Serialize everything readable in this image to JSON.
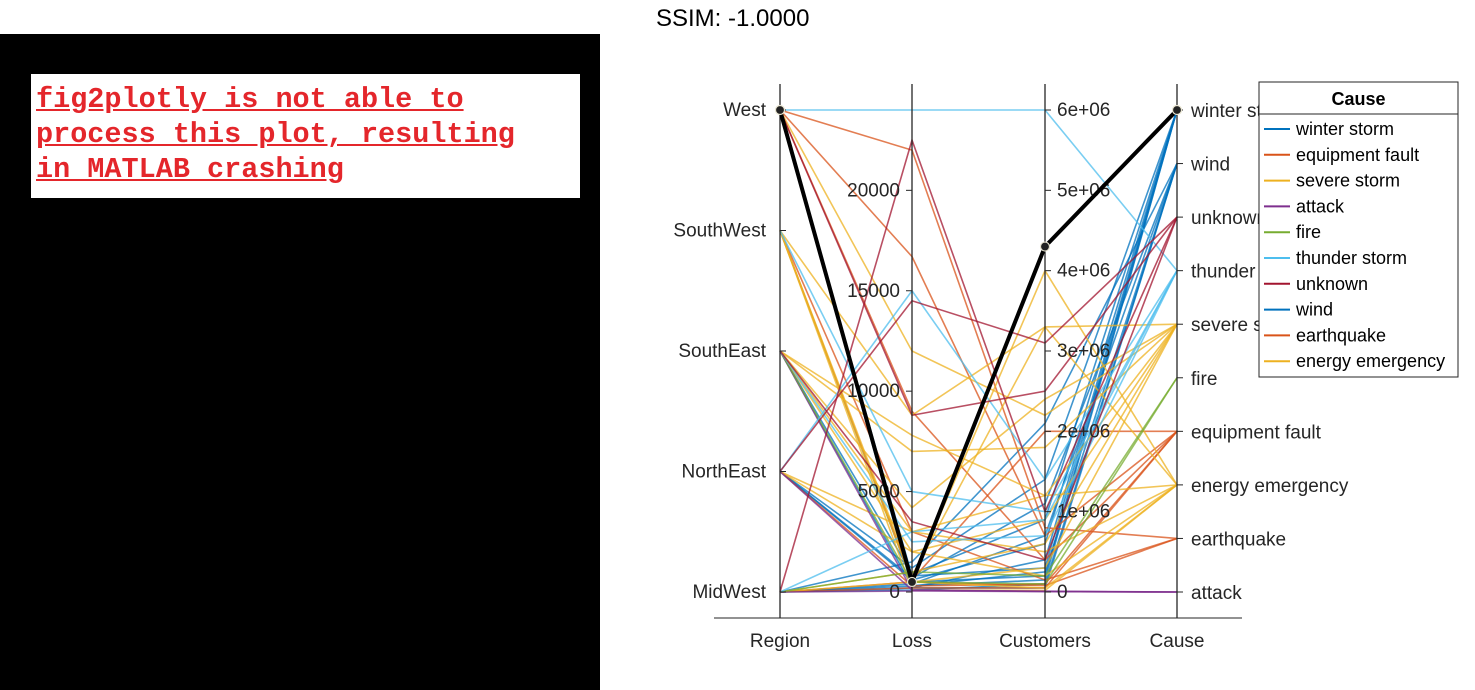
{
  "message": {
    "lines": [
      "fig2plotly is not able to",
      "process this plot, resulting",
      "in MATLAB crashing"
    ]
  },
  "ssim_label": "SSIM: -1.0000",
  "chart_data": {
    "type": "parallel-coordinates",
    "axes": [
      "Region",
      "Loss",
      "Customers",
      "Cause"
    ],
    "region_levels": [
      "MidWest",
      "NorthEast",
      "SouthEast",
      "SouthWest",
      "West"
    ],
    "cause_levels": [
      "attack",
      "earthquake",
      "energy emergency",
      "equipment fault",
      "fire",
      "severe storm",
      "thunder storm",
      "unknown",
      "wind",
      "winter storm"
    ],
    "loss_range": [
      0,
      24000
    ],
    "loss_ticks": [
      0,
      5000,
      10000,
      15000,
      20000
    ],
    "loss_tick_labels": [
      "0",
      "5000",
      "10000",
      "15000",
      "20000"
    ],
    "customers_range": [
      0,
      6000000
    ],
    "customers_ticks": [
      0,
      1000000,
      2000000,
      3000000,
      4000000,
      5000000,
      6000000
    ],
    "customers_tick_labels": [
      "0",
      "1e+06",
      "2e+06",
      "3e+06",
      "4e+06",
      "5e+06",
      "6e+06"
    ],
    "legend": {
      "title": "Cause",
      "position": "right",
      "entries": [
        {
          "label": "winter storm",
          "color": "#0072bd"
        },
        {
          "label": "equipment fault",
          "color": "#d95319"
        },
        {
          "label": "severe storm",
          "color": "#edb120"
        },
        {
          "label": "attack",
          "color": "#7e2f8e"
        },
        {
          "label": "fire",
          "color": "#77ac30"
        },
        {
          "label": "thunder storm",
          "color": "#4dbeee"
        },
        {
          "label": "unknown",
          "color": "#a2142f"
        },
        {
          "label": "wind",
          "color": "#0072bd"
        },
        {
          "label": "earthquake",
          "color": "#d95319"
        },
        {
          "label": "energy emergency",
          "color": "#edb120"
        }
      ]
    },
    "highlight": {
      "region": "West",
      "loss": 500,
      "customers": 4300000,
      "cause": "winter storm",
      "color": "#000000"
    },
    "series": [
      {
        "region": "West",
        "loss": 800,
        "customers": 300000,
        "cause": "winter storm"
      },
      {
        "region": "MidWest",
        "loss": 300,
        "customers": 150000,
        "cause": "winter storm"
      },
      {
        "region": "NorthEast",
        "loss": 600,
        "customers": 600000,
        "cause": "winter storm"
      },
      {
        "region": "SouthEast",
        "loss": 900,
        "customers": 900000,
        "cause": "winter storm"
      },
      {
        "region": "MidWest",
        "loss": 200,
        "customers": 400000,
        "cause": "winter storm"
      },
      {
        "region": "NorthEast",
        "loss": 1200,
        "customers": 1400000,
        "cause": "winter storm"
      },
      {
        "region": "SouthWest",
        "loss": 500,
        "customers": 200000,
        "cause": "winter storm"
      },
      {
        "region": "MidWest",
        "loss": 100,
        "customers": 100000,
        "cause": "wind"
      },
      {
        "region": "MidWest",
        "loss": 400,
        "customers": 700000,
        "cause": "wind"
      },
      {
        "region": "NorthEast",
        "loss": 700,
        "customers": 1100000,
        "cause": "wind"
      },
      {
        "region": "SouthEast",
        "loss": 300,
        "customers": 250000,
        "cause": "wind"
      },
      {
        "region": "West",
        "loss": 200,
        "customers": 50000,
        "cause": "wind"
      },
      {
        "region": "MidWest",
        "loss": 1500,
        "customers": 2100000,
        "cause": "wind"
      },
      {
        "region": "West",
        "loss": 16700,
        "customers": 700000,
        "cause": "equipment fault"
      },
      {
        "region": "West",
        "loss": 9000,
        "customers": 400000,
        "cause": "equipment fault"
      },
      {
        "region": "SouthWest",
        "loss": 600,
        "customers": 2000000,
        "cause": "equipment fault"
      },
      {
        "region": "NorthEast",
        "loss": 300,
        "customers": 100000,
        "cause": "equipment fault"
      },
      {
        "region": "MidWest",
        "loss": 200,
        "customers": 50000,
        "cause": "equipment fault"
      },
      {
        "region": "West",
        "loss": 22000,
        "customers": 800000,
        "cause": "earthquake"
      },
      {
        "region": "SouthWest",
        "loss": 3000,
        "customers": 150000,
        "cause": "earthquake"
      },
      {
        "region": "MidWest",
        "loss": 500,
        "customers": 80000,
        "cause": "earthquake"
      },
      {
        "region": "West",
        "loss": 12000,
        "customers": 2200000,
        "cause": "severe storm"
      },
      {
        "region": "SouthWest",
        "loss": 8800,
        "customers": 3300000,
        "cause": "severe storm"
      },
      {
        "region": "SouthEast",
        "loss": 7000,
        "customers": 1800000,
        "cause": "severe storm"
      },
      {
        "region": "SouthEast",
        "loss": 2000,
        "customers": 900000,
        "cause": "severe storm"
      },
      {
        "region": "MidWest",
        "loss": 1000,
        "customers": 600000,
        "cause": "severe storm"
      },
      {
        "region": "NorthEast",
        "loss": 3000,
        "customers": 1200000,
        "cause": "severe storm"
      },
      {
        "region": "SouthWest",
        "loss": 500,
        "customers": 300000,
        "cause": "severe storm"
      },
      {
        "region": "SouthEast",
        "loss": 4200,
        "customers": 2400000,
        "cause": "severe storm"
      },
      {
        "region": "West",
        "loss": 600,
        "customers": 4000000,
        "cause": "energy emergency"
      },
      {
        "region": "SouthWest",
        "loss": 800,
        "customers": 3300000,
        "cause": "energy emergency"
      },
      {
        "region": "SouthEast",
        "loss": 7800,
        "customers": 1200000,
        "cause": "energy emergency"
      },
      {
        "region": "SouthEast",
        "loss": 3000,
        "customers": 500000,
        "cause": "energy emergency"
      },
      {
        "region": "NorthEast",
        "loss": 2000,
        "customers": 200000,
        "cause": "energy emergency"
      },
      {
        "region": "MidWest",
        "loss": 500,
        "customers": 50000,
        "cause": "energy emergency"
      },
      {
        "region": "SouthWest",
        "loss": 100,
        "customers": 20000,
        "cause": "energy emergency"
      },
      {
        "region": "NorthEast",
        "loss": 100,
        "customers": 10000,
        "cause": "attack"
      },
      {
        "region": "MidWest",
        "loss": 50,
        "customers": 5000,
        "cause": "attack"
      },
      {
        "region": "SouthEast",
        "loss": 100,
        "customers": 5000,
        "cause": "attack"
      },
      {
        "region": "MidWest",
        "loss": 1000,
        "customers": 200000,
        "cause": "fire"
      },
      {
        "region": "SouthEast",
        "loss": 500,
        "customers": 100000,
        "cause": "fire"
      },
      {
        "region": "West",
        "loss": 24000,
        "customers": 6000000,
        "cause": "thunder storm"
      },
      {
        "region": "NorthEast",
        "loss": 15000,
        "customers": 1400000,
        "cause": "thunder storm"
      },
      {
        "region": "SouthWest",
        "loss": 5000,
        "customers": 1000000,
        "cause": "thunder storm"
      },
      {
        "region": "SouthEast",
        "loss": 2500,
        "customers": 700000,
        "cause": "thunder storm"
      },
      {
        "region": "MidWest",
        "loss": 3000,
        "customers": 900000,
        "cause": "thunder storm"
      },
      {
        "region": "NorthEast",
        "loss": 14500,
        "customers": 3100000,
        "cause": "unknown"
      },
      {
        "region": "MidWest",
        "loss": 22500,
        "customers": 1000000,
        "cause": "unknown"
      },
      {
        "region": "West",
        "loss": 8800,
        "customers": 2500000,
        "cause": "unknown"
      },
      {
        "region": "SouthEast",
        "loss": 3500,
        "customers": 400000,
        "cause": "unknown"
      }
    ]
  }
}
